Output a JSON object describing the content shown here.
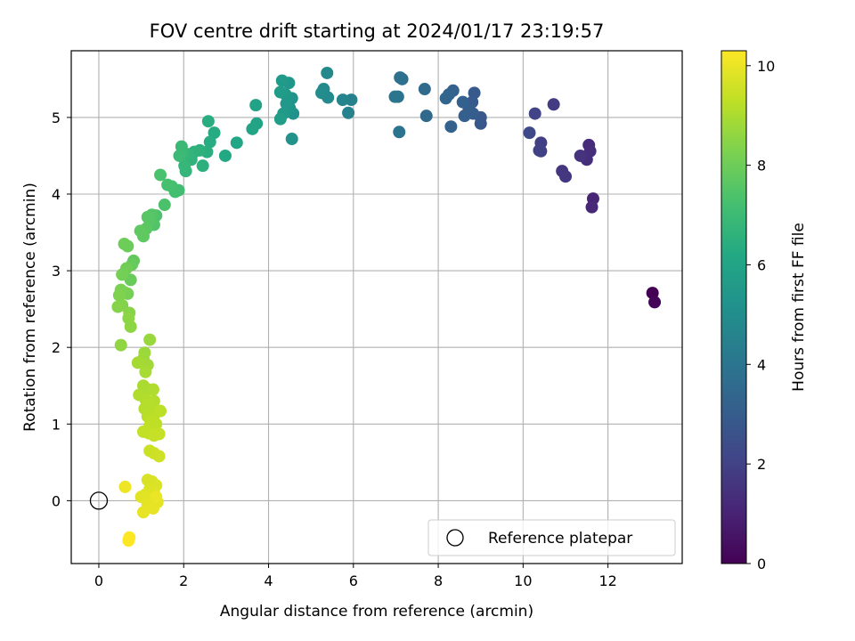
{
  "chart_data": {
    "type": "scatter",
    "title": "FOV centre drift starting at 2024/01/17 23:19:57",
    "xlabel": "Angular distance from reference (arcmin)",
    "ylabel": "Rotation from reference (arcmin)",
    "xlim": [
      -0.65,
      13.75
    ],
    "ylim": [
      -0.82,
      5.87
    ],
    "xticks": [
      0,
      2,
      4,
      6,
      8,
      10,
      12
    ],
    "yticks": [
      0,
      1,
      2,
      3,
      4,
      5
    ],
    "grid": true,
    "colormap": "viridis",
    "colorbar": {
      "label": "Hours from first FF file",
      "range": [
        0,
        10.3
      ],
      "ticks": [
        0,
        2,
        4,
        6,
        8,
        10
      ]
    },
    "legend": {
      "placement": "bottom-right",
      "entries": [
        "Reference platepar"
      ]
    },
    "reference_point": {
      "x": 0,
      "y": 0
    },
    "points": [
      {
        "x": 13.05,
        "y": 2.71,
        "c": 0.0
      },
      {
        "x": 13.1,
        "y": 2.59,
        "c": 0.1
      },
      {
        "x": 11.65,
        "y": 3.94,
        "c": 1.1
      },
      {
        "x": 11.62,
        "y": 3.83,
        "c": 1.2
      },
      {
        "x": 11.55,
        "y": 4.64,
        "c": 1.3
      },
      {
        "x": 11.58,
        "y": 4.56,
        "c": 1.35
      },
      {
        "x": 11.5,
        "y": 4.45,
        "c": 1.4
      },
      {
        "x": 11.35,
        "y": 4.5,
        "c": 1.5
      },
      {
        "x": 11.0,
        "y": 4.23,
        "c": 1.6
      },
      {
        "x": 10.92,
        "y": 4.3,
        "c": 1.65
      },
      {
        "x": 10.72,
        "y": 5.17,
        "c": 1.8
      },
      {
        "x": 10.42,
        "y": 4.67,
        "c": 1.9
      },
      {
        "x": 10.38,
        "y": 4.57,
        "c": 1.95
      },
      {
        "x": 10.42,
        "y": 4.56,
        "c": 2.0
      },
      {
        "x": 10.28,
        "y": 5.05,
        "c": 2.1
      },
      {
        "x": 10.15,
        "y": 4.8,
        "c": 2.2
      },
      {
        "x": 9.0,
        "y": 4.92,
        "c": 2.8
      },
      {
        "x": 9.0,
        "y": 5.0,
        "c": 2.85
      },
      {
        "x": 8.85,
        "y": 5.32,
        "c": 2.9
      },
      {
        "x": 8.8,
        "y": 5.2,
        "c": 2.95
      },
      {
        "x": 8.82,
        "y": 5.05,
        "c": 3.0
      },
      {
        "x": 8.72,
        "y": 5.1,
        "c": 3.05
      },
      {
        "x": 8.62,
        "y": 5.02,
        "c": 3.1
      },
      {
        "x": 8.58,
        "y": 5.2,
        "c": 3.15
      },
      {
        "x": 8.35,
        "y": 5.35,
        "c": 3.2
      },
      {
        "x": 8.3,
        "y": 4.88,
        "c": 3.25
      },
      {
        "x": 8.25,
        "y": 5.3,
        "c": 3.3
      },
      {
        "x": 8.18,
        "y": 5.25,
        "c": 3.35
      },
      {
        "x": 7.72,
        "y": 5.02,
        "c": 3.5
      },
      {
        "x": 7.68,
        "y": 5.37,
        "c": 3.6
      },
      {
        "x": 7.15,
        "y": 5.5,
        "c": 3.8
      },
      {
        "x": 7.1,
        "y": 5.52,
        "c": 3.85
      },
      {
        "x": 7.08,
        "y": 4.81,
        "c": 3.9
      },
      {
        "x": 7.05,
        "y": 5.27,
        "c": 3.95
      },
      {
        "x": 6.98,
        "y": 5.27,
        "c": 4.0
      },
      {
        "x": 5.95,
        "y": 5.23,
        "c": 4.5
      },
      {
        "x": 5.88,
        "y": 5.06,
        "c": 4.55
      },
      {
        "x": 5.75,
        "y": 5.23,
        "c": 4.6
      },
      {
        "x": 5.38,
        "y": 5.58,
        "c": 4.8
      },
      {
        "x": 5.4,
        "y": 5.26,
        "c": 4.85
      },
      {
        "x": 5.3,
        "y": 5.37,
        "c": 4.9
      },
      {
        "x": 5.25,
        "y": 5.32,
        "c": 4.95
      },
      {
        "x": 4.58,
        "y": 5.05,
        "c": 5.2
      },
      {
        "x": 4.55,
        "y": 4.72,
        "c": 5.25
      },
      {
        "x": 4.55,
        "y": 5.25,
        "c": 5.3
      },
      {
        "x": 4.5,
        "y": 5.12,
        "c": 5.35
      },
      {
        "x": 4.48,
        "y": 5.45,
        "c": 5.4
      },
      {
        "x": 4.42,
        "y": 5.18,
        "c": 5.45
      },
      {
        "x": 4.4,
        "y": 5.3,
        "c": 5.5
      },
      {
        "x": 4.35,
        "y": 5.05,
        "c": 5.55
      },
      {
        "x": 4.32,
        "y": 5.48,
        "c": 5.6
      },
      {
        "x": 4.28,
        "y": 5.33,
        "c": 5.65
      },
      {
        "x": 4.28,
        "y": 4.98,
        "c": 5.7
      },
      {
        "x": 3.7,
        "y": 5.16,
        "c": 5.9
      },
      {
        "x": 3.72,
        "y": 4.92,
        "c": 5.95
      },
      {
        "x": 3.62,
        "y": 4.85,
        "c": 6.0
      },
      {
        "x": 3.25,
        "y": 4.67,
        "c": 6.1
      },
      {
        "x": 2.98,
        "y": 4.5,
        "c": 6.2
      },
      {
        "x": 2.72,
        "y": 4.8,
        "c": 6.3
      },
      {
        "x": 2.62,
        "y": 4.68,
        "c": 6.35
      },
      {
        "x": 2.58,
        "y": 4.95,
        "c": 6.4
      },
      {
        "x": 2.55,
        "y": 4.55,
        "c": 6.45
      },
      {
        "x": 2.45,
        "y": 4.37,
        "c": 6.5
      },
      {
        "x": 2.38,
        "y": 4.57,
        "c": 6.55
      },
      {
        "x": 2.25,
        "y": 4.55,
        "c": 6.6
      },
      {
        "x": 2.18,
        "y": 4.45,
        "c": 6.65
      },
      {
        "x": 2.1,
        "y": 4.52,
        "c": 6.7
      },
      {
        "x": 2.05,
        "y": 4.3,
        "c": 6.75
      },
      {
        "x": 2.02,
        "y": 4.37,
        "c": 6.8
      },
      {
        "x": 1.98,
        "y": 4.55,
        "c": 6.85
      },
      {
        "x": 1.95,
        "y": 4.62,
        "c": 6.9
      },
      {
        "x": 1.9,
        "y": 4.5,
        "c": 6.95
      },
      {
        "x": 1.88,
        "y": 4.05,
        "c": 7.1
      },
      {
        "x": 1.8,
        "y": 4.03,
        "c": 7.15
      },
      {
        "x": 1.72,
        "y": 4.1,
        "c": 7.2
      },
      {
        "x": 1.62,
        "y": 4.12,
        "c": 7.25
      },
      {
        "x": 1.45,
        "y": 4.25,
        "c": 7.3
      },
      {
        "x": 1.55,
        "y": 3.86,
        "c": 7.35
      },
      {
        "x": 1.35,
        "y": 3.72,
        "c": 7.4
      },
      {
        "x": 1.3,
        "y": 3.6,
        "c": 7.45
      },
      {
        "x": 1.25,
        "y": 3.73,
        "c": 7.5
      },
      {
        "x": 1.2,
        "y": 3.65,
        "c": 7.55
      },
      {
        "x": 1.15,
        "y": 3.7,
        "c": 7.6
      },
      {
        "x": 1.12,
        "y": 3.55,
        "c": 7.65
      },
      {
        "x": 1.05,
        "y": 3.45,
        "c": 7.7
      },
      {
        "x": 0.98,
        "y": 3.52,
        "c": 7.75
      },
      {
        "x": 0.82,
        "y": 3.13,
        "c": 7.8
      },
      {
        "x": 0.78,
        "y": 3.08,
        "c": 7.85
      },
      {
        "x": 0.75,
        "y": 2.88,
        "c": 7.9
      },
      {
        "x": 0.68,
        "y": 3.32,
        "c": 7.95
      },
      {
        "x": 0.6,
        "y": 3.35,
        "c": 8.0
      },
      {
        "x": 0.65,
        "y": 3.03,
        "c": 8.05
      },
      {
        "x": 0.55,
        "y": 2.95,
        "c": 8.1
      },
      {
        "x": 0.68,
        "y": 2.7,
        "c": 8.15
      },
      {
        "x": 0.6,
        "y": 2.72,
        "c": 8.2
      },
      {
        "x": 0.52,
        "y": 2.75,
        "c": 8.25
      },
      {
        "x": 0.48,
        "y": 2.68,
        "c": 8.3
      },
      {
        "x": 0.55,
        "y": 2.55,
        "c": 8.35
      },
      {
        "x": 0.45,
        "y": 2.53,
        "c": 8.4
      },
      {
        "x": 0.72,
        "y": 2.45,
        "c": 8.45
      },
      {
        "x": 0.7,
        "y": 2.38,
        "c": 8.5
      },
      {
        "x": 0.75,
        "y": 2.27,
        "c": 8.55
      },
      {
        "x": 0.52,
        "y": 2.03,
        "c": 8.6
      },
      {
        "x": 1.2,
        "y": 2.1,
        "c": 8.7
      },
      {
        "x": 1.08,
        "y": 1.93,
        "c": 8.75
      },
      {
        "x": 1.05,
        "y": 1.85,
        "c": 8.8
      },
      {
        "x": 1.15,
        "y": 1.77,
        "c": 8.85
      },
      {
        "x": 0.92,
        "y": 1.8,
        "c": 8.9
      },
      {
        "x": 1.1,
        "y": 1.68,
        "c": 8.95
      },
      {
        "x": 1.05,
        "y": 1.5,
        "c": 9.0
      },
      {
        "x": 1.15,
        "y": 1.45,
        "c": 9.0
      },
      {
        "x": 1.28,
        "y": 1.45,
        "c": 9.05
      },
      {
        "x": 0.95,
        "y": 1.38,
        "c": 9.05
      },
      {
        "x": 1.1,
        "y": 1.32,
        "c": 9.1
      },
      {
        "x": 1.3,
        "y": 1.3,
        "c": 9.1
      },
      {
        "x": 1.2,
        "y": 1.25,
        "c": 9.15
      },
      {
        "x": 1.08,
        "y": 1.2,
        "c": 9.15
      },
      {
        "x": 1.15,
        "y": 1.1,
        "c": 9.2
      },
      {
        "x": 1.3,
        "y": 1.12,
        "c": 9.2
      },
      {
        "x": 1.25,
        "y": 1.05,
        "c": 9.25
      },
      {
        "x": 1.45,
        "y": 1.17,
        "c": 9.25
      },
      {
        "x": 1.35,
        "y": 1.0,
        "c": 9.3
      },
      {
        "x": 1.2,
        "y": 0.98,
        "c": 9.3
      },
      {
        "x": 1.05,
        "y": 0.9,
        "c": 9.35
      },
      {
        "x": 1.18,
        "y": 0.88,
        "c": 9.35
      },
      {
        "x": 1.3,
        "y": 0.85,
        "c": 9.4
      },
      {
        "x": 1.42,
        "y": 0.87,
        "c": 9.4
      },
      {
        "x": 1.2,
        "y": 0.65,
        "c": 9.5
      },
      {
        "x": 1.3,
        "y": 0.62,
        "c": 9.5
      },
      {
        "x": 1.42,
        "y": 0.58,
        "c": 9.55
      },
      {
        "x": 1.15,
        "y": 0.27,
        "c": 9.7
      },
      {
        "x": 1.25,
        "y": 0.25,
        "c": 9.7
      },
      {
        "x": 1.35,
        "y": 0.2,
        "c": 9.75
      },
      {
        "x": 1.2,
        "y": 0.15,
        "c": 9.75
      },
      {
        "x": 1.3,
        "y": 0.1,
        "c": 9.8
      },
      {
        "x": 1.1,
        "y": 0.08,
        "c": 9.8
      },
      {
        "x": 1.0,
        "y": 0.05,
        "c": 9.85
      },
      {
        "x": 1.22,
        "y": 0.02,
        "c": 9.85
      },
      {
        "x": 1.38,
        "y": -0.02,
        "c": 9.9
      },
      {
        "x": 1.15,
        "y": -0.05,
        "c": 9.9
      },
      {
        "x": 1.28,
        "y": -0.1,
        "c": 9.95
      },
      {
        "x": 1.05,
        "y": -0.15,
        "c": 9.95
      },
      {
        "x": 1.35,
        "y": 0.05,
        "c": 10.0
      },
      {
        "x": 0.62,
        "y": 0.18,
        "c": 10.05
      },
      {
        "x": 0.72,
        "y": -0.48,
        "c": 10.25
      },
      {
        "x": 0.7,
        "y": -0.52,
        "c": 10.3
      }
    ]
  }
}
